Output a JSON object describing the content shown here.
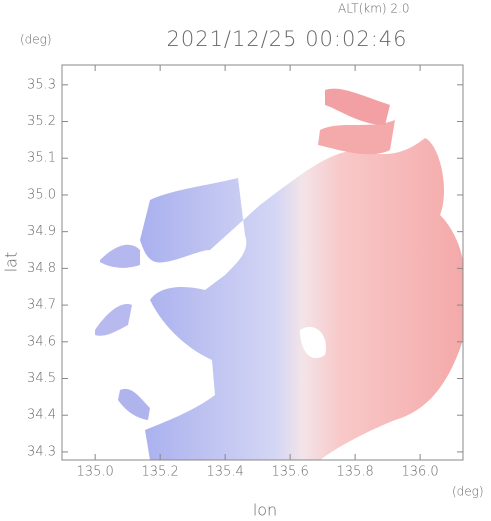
{
  "chart_data": {
    "type": "radar-map",
    "title": "2021/12/25 00:02:46",
    "subtitle": "ALT(km) 2.0",
    "x_label": "lon",
    "y_label": "lat",
    "x_unit": "(deg)",
    "y_unit": "(deg)",
    "xlim": [
      134.898,
      136.132
    ],
    "ylim": [
      34.278,
      35.354
    ],
    "xticks": [
      {
        "value": 135.0,
        "label": "135.0"
      },
      135.2,
      135.4,
      135.6,
      135.8,
      {
        "value": 136.0,
        "label": "136.0"
      }
    ],
    "yticks": [
      34.3,
      34.4,
      34.5,
      34.6,
      34.7,
      34.8,
      34.9,
      {
        "value": 35.0,
        "label": "35.0"
      },
      35.1,
      35.2,
      35.3
    ]
  }
}
